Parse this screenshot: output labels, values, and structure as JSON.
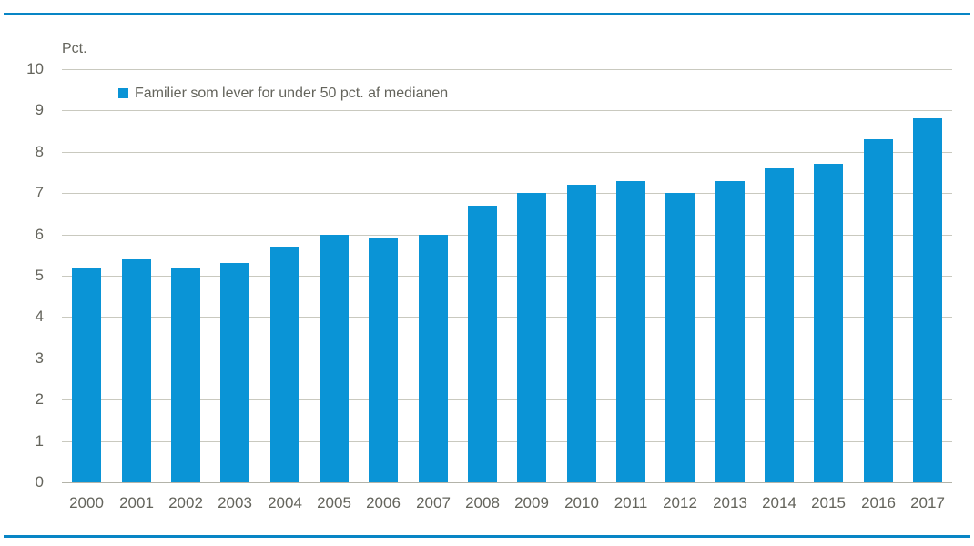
{
  "figure": {
    "top_rule_color": "#0885c5",
    "bottom_rule_color": "#0885c5",
    "background_color": "#ffffff"
  },
  "chart_data": {
    "type": "bar",
    "title": "",
    "unit_label": "Pct.",
    "categories": [
      "2000",
      "2001",
      "2002",
      "2003",
      "2004",
      "2005",
      "2006",
      "2007",
      "2008",
      "2009",
      "2010",
      "2011",
      "2012",
      "2013",
      "2014",
      "2015",
      "2016",
      "2017"
    ],
    "series": [
      {
        "name": "Familier som lever for under 50 pct. af medianen",
        "values": [
          5.2,
          5.4,
          5.2,
          5.3,
          5.7,
          6.0,
          5.9,
          6.0,
          6.7,
          7.0,
          7.2,
          7.3,
          7.0,
          7.3,
          7.6,
          7.7,
          8.3,
          8.8
        ],
        "color": "#0a94d6"
      }
    ],
    "xlabel": "",
    "ylabel": "Pct.",
    "ylim": [
      0,
      10
    ],
    "ytick_interval": 1,
    "ytick_labels": [
      "0",
      "1",
      "2",
      "3",
      "4",
      "5",
      "6",
      "7",
      "8",
      "9",
      "10"
    ],
    "grid": true,
    "gridline_color": "#c9c9bf",
    "zero_line_color": "#b3b3a9",
    "text_color": "#64645c",
    "legend_position": "inside-top-left"
  }
}
